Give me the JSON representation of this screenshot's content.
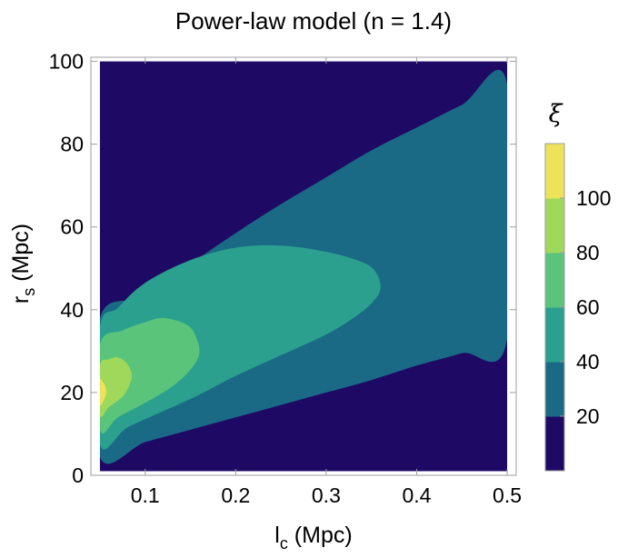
{
  "chart_data": {
    "type": "contour",
    "title": "Power-law model (n = 1.4)",
    "xlabel": {
      "main": "l",
      "sub": "c",
      "unit": " (Mpc)"
    },
    "ylabel": {
      "main": "r",
      "sub": "s",
      "unit": " (Mpc)"
    },
    "xlim": [
      0.04,
      0.51
    ],
    "ylim": [
      0,
      101
    ],
    "data_domain": {
      "x": [
        0.05,
        0.5
      ],
      "y": [
        1,
        100
      ]
    },
    "xticks": [
      0.1,
      0.2,
      0.3,
      0.4,
      0.5
    ],
    "xtick_labels": [
      "0.1",
      "0.2",
      "0.3",
      "0.4",
      "0.5"
    ],
    "yticks": [
      0,
      20,
      40,
      60,
      80,
      100
    ],
    "ytick_labels": [
      "0",
      "20",
      "40",
      "60",
      "80",
      "100"
    ],
    "colorbar": {
      "title": "ξ",
      "tick_labels": [
        "20",
        "40",
        "60",
        "80",
        "100"
      ],
      "levels": [
        {
          "max": 20,
          "color": "#1e0a64"
        },
        {
          "max": 40,
          "color": "#1a6a85"
        },
        {
          "max": 60,
          "color": "#2ba08e"
        },
        {
          "max": 80,
          "color": "#59c47a"
        },
        {
          "max": 100,
          "color": "#a0d85c"
        },
        {
          "max": 120,
          "color": "#ece35a"
        }
      ]
    },
    "contours": [
      {
        "level": 20,
        "fill": "#1a6a85",
        "points": [
          [
            0.05,
            4.5
          ],
          [
            0.1,
            8
          ],
          [
            0.15,
            11
          ],
          [
            0.2,
            14
          ],
          [
            0.25,
            17
          ],
          [
            0.3,
            20
          ],
          [
            0.35,
            23
          ],
          [
            0.4,
            26.5
          ],
          [
            0.45,
            29.5
          ],
          [
            0.5,
            33
          ],
          [
            0.5,
            94.5
          ],
          [
            0.45,
            89.5
          ],
          [
            0.4,
            84
          ],
          [
            0.35,
            78.5
          ],
          [
            0.3,
            72
          ],
          [
            0.25,
            65.5
          ],
          [
            0.2,
            58.5
          ],
          [
            0.15,
            51
          ],
          [
            0.1,
            43
          ],
          [
            0.05,
            38
          ]
        ]
      },
      {
        "level": 40,
        "fill": "#2ba08e",
        "points": [
          [
            0.05,
            7.5
          ],
          [
            0.08,
            11.5
          ],
          [
            0.12,
            15.5
          ],
          [
            0.16,
            19.5
          ],
          [
            0.2,
            24
          ],
          [
            0.25,
            29
          ],
          [
            0.3,
            34
          ],
          [
            0.33,
            38
          ],
          [
            0.35,
            41.5
          ],
          [
            0.36,
            45
          ],
          [
            0.355,
            49
          ],
          [
            0.34,
            51.5
          ],
          [
            0.3,
            54
          ],
          [
            0.25,
            55.5
          ],
          [
            0.2,
            55
          ],
          [
            0.15,
            52
          ],
          [
            0.1,
            46.5
          ],
          [
            0.07,
            40.5
          ],
          [
            0.05,
            35.5
          ]
        ]
      },
      {
        "level": 60,
        "fill": "#59c47a",
        "points": [
          [
            0.05,
            11
          ],
          [
            0.07,
            14
          ],
          [
            0.1,
            17.5
          ],
          [
            0.13,
            21.5
          ],
          [
            0.15,
            25.5
          ],
          [
            0.16,
            29.5
          ],
          [
            0.155,
            34
          ],
          [
            0.145,
            36.5
          ],
          [
            0.12,
            38
          ],
          [
            0.1,
            37
          ],
          [
            0.075,
            35
          ],
          [
            0.05,
            31.5
          ]
        ]
      },
      {
        "level": 80,
        "fill": "#a0d85c",
        "points": [
          [
            0.05,
            14.5
          ],
          [
            0.06,
            16.5
          ],
          [
            0.075,
            19
          ],
          [
            0.083,
            22
          ],
          [
            0.085,
            24.5
          ],
          [
            0.08,
            27
          ],
          [
            0.07,
            28.5
          ],
          [
            0.06,
            28
          ],
          [
            0.05,
            26.5
          ]
        ]
      },
      {
        "level": 100,
        "fill": "#ece35a",
        "points": [
          [
            0.05,
            17
          ],
          [
            0.055,
            18.5
          ],
          [
            0.057,
            20
          ],
          [
            0.056,
            21.5
          ],
          [
            0.053,
            22.5
          ],
          [
            0.05,
            23
          ]
        ]
      }
    ]
  }
}
